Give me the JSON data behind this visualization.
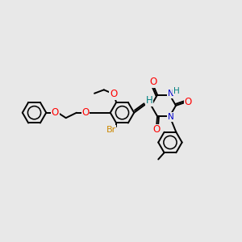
{
  "bg_color": "#e8e8e8",
  "bond_color": "#000000",
  "bond_lw": 1.4,
  "colors": {
    "O": "#ff0000",
    "N": "#0000cc",
    "Br": "#cc8800",
    "H_teal": "#008080",
    "C": "#000000"
  },
  "fs": 8.5,
  "fs_small": 7.5,
  "r_ring": 0.5,
  "dbo": 0.065
}
